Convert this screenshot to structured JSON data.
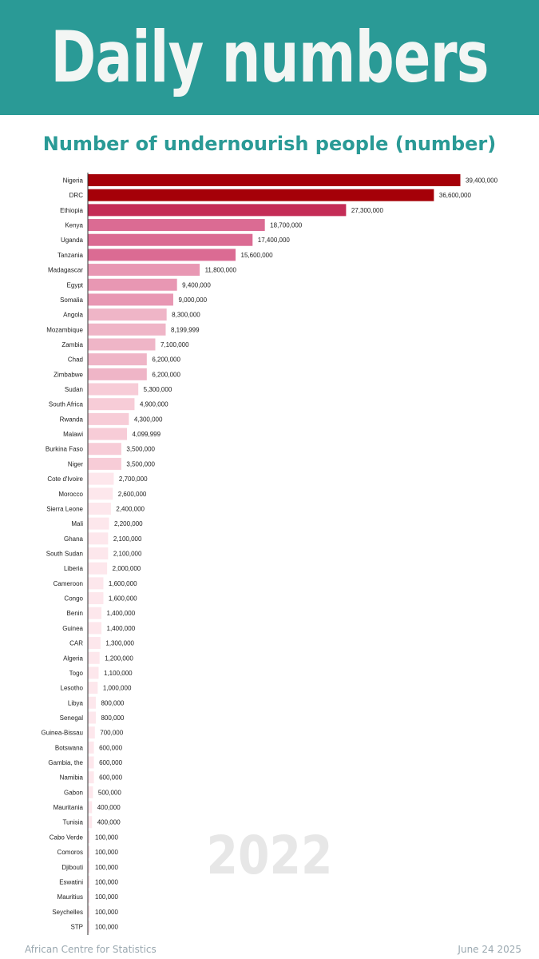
{
  "header": {
    "title": "Daily numbers",
    "background": "#2a9a96"
  },
  "footer": {
    "source": "African Centre for Statistics",
    "date": "June 24 2025"
  },
  "watermark": {
    "year": "2022"
  },
  "chart_data": {
    "type": "bar",
    "orientation": "horizontal",
    "title": "Number of undernourish people (number)",
    "xlabel": "",
    "ylabel": "",
    "xlim": [
      0,
      39400000
    ],
    "grid": false,
    "categories": [
      "Nigeria",
      "DRC",
      "Ethiopia",
      "Kenya",
      "Uganda",
      "Tanzania",
      "Madagascar",
      "Egypt",
      "Somalia",
      "Angola",
      "Mozambique",
      "Zambia",
      "Chad",
      "Zimbabwe",
      "Sudan",
      "South Africa",
      "Rwanda",
      "Malawi",
      "Burkina Faso",
      "Niger",
      "Cote d'Ivoire",
      "Morocco",
      "Sierra Leone",
      "Mali",
      "Ghana",
      "South Sudan",
      "Liberia",
      "Cameroon",
      "Congo",
      "Benin",
      "Guinea",
      "CAR",
      "Algeria",
      "Togo",
      "Lesotho",
      "Libya",
      "Senegal",
      "Guinea-Bissau",
      "Botswana",
      "Gambia, the",
      "Namibia",
      "Gabon",
      "Mauritania",
      "Tunisia",
      "Cabo Verde",
      "Comoros",
      "Djibouti",
      "Eswatini",
      "Mauritius",
      "Seychelles",
      "STP"
    ],
    "values": [
      39400000,
      36600000,
      27300000,
      18700000,
      17400000,
      15600000,
      11800000,
      9400000,
      9000000,
      8300000,
      8199999,
      7100000,
      6200000,
      6200000,
      5300000,
      4900000,
      4300000,
      4099999,
      3500000,
      3500000,
      2700000,
      2600000,
      2400000,
      2200000,
      2100000,
      2100000,
      2000000,
      1600000,
      1600000,
      1400000,
      1400000,
      1300000,
      1200000,
      1100000,
      1000000,
      800000,
      800000,
      700000,
      600000,
      600000,
      600000,
      500000,
      400000,
      400000,
      100000,
      100000,
      100000,
      100000,
      100000,
      100000,
      100000
    ],
    "value_labels": [
      "39,400,000",
      "36,600,000",
      "27,300,000",
      "18,700,000",
      "17,400,000",
      "15,600,000",
      "11,800,000",
      "9,400,000",
      "9,000,000",
      "8,300,000",
      "8,199,999",
      "7,100,000",
      "6,200,000",
      "6,200,000",
      "5,300,000",
      "4,900,000",
      "4,300,000",
      "4,099,999",
      "3,500,000",
      "3,500,000",
      "2,700,000",
      "2,600,000",
      "2,400,000",
      "2,200,000",
      "2,100,000",
      "2,100,000",
      "2,000,000",
      "1,600,000",
      "1,600,000",
      "1,400,000",
      "1,400,000",
      "1,300,000",
      "1,200,000",
      "1,100,000",
      "1,000,000",
      "800,000",
      "800,000",
      "700,000",
      "600,000",
      "600,000",
      "600,000",
      "500,000",
      "400,000",
      "400,000",
      "100,000",
      "100,000",
      "100,000",
      "100,000",
      "100,000",
      "100,000",
      "100,000"
    ],
    "colors": {
      "top": "#a50008",
      "ramp": [
        "#c42c56",
        "#db6b93",
        "#e897b3",
        "#efb5c7",
        "#f7ccd7",
        "#fde7ec"
      ]
    }
  }
}
